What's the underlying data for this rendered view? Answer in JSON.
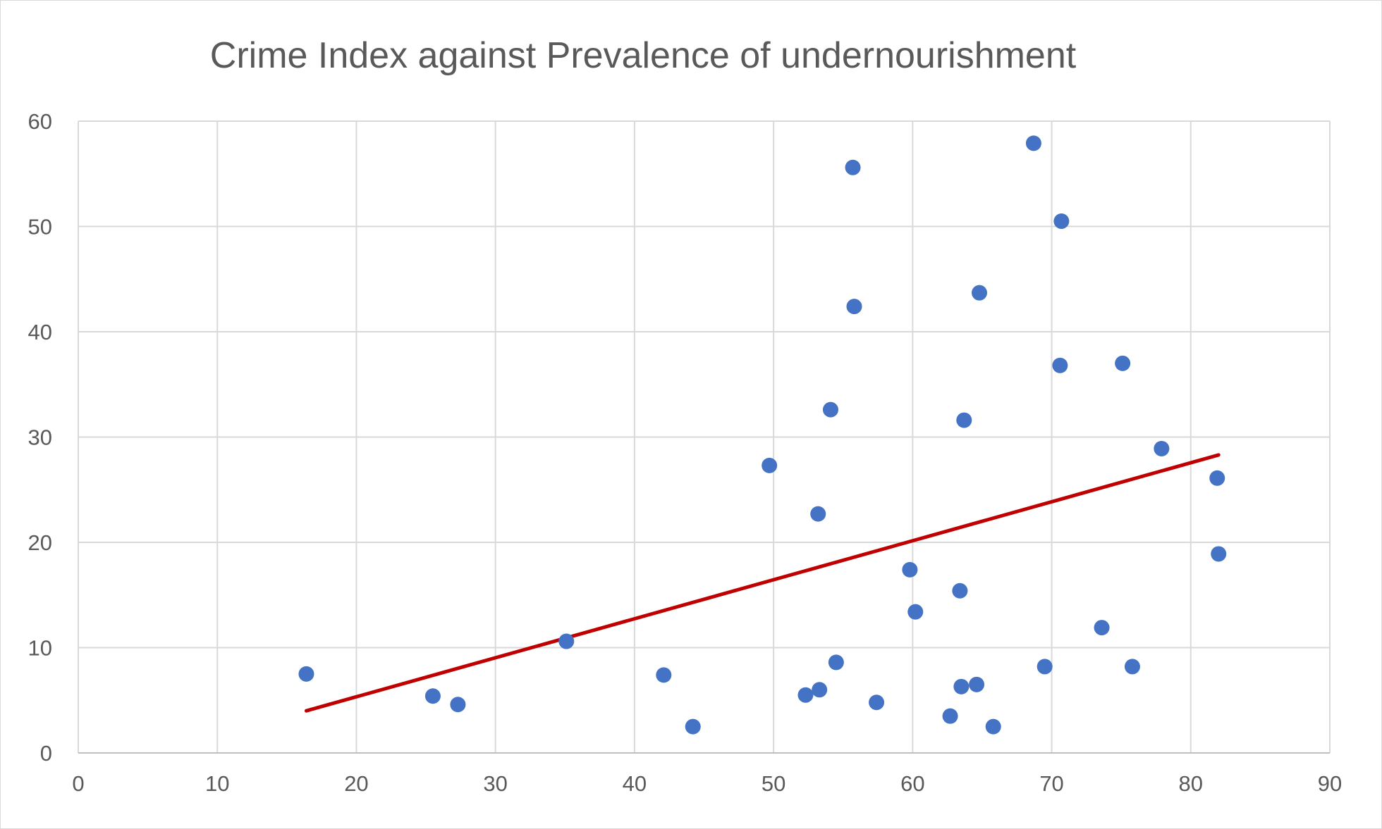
{
  "chart_data": {
    "type": "scatter",
    "title": "Crime Index against Prevalence of undernourishment",
    "xlabel": "",
    "ylabel": "",
    "xlim": [
      0,
      90
    ],
    "ylim": [
      0,
      60
    ],
    "x_ticks": [
      "0",
      "10",
      "20",
      "30",
      "40",
      "50",
      "60",
      "70",
      "80",
      "90"
    ],
    "y_ticks": [
      "0",
      "10",
      "20",
      "30",
      "40",
      "50",
      "60"
    ],
    "grid": true,
    "legend": "none",
    "marker_color": "#4472C4",
    "trendline_color": "#C00000",
    "points": [
      {
        "x": 16.4,
        "y": 7.5
      },
      {
        "x": 25.5,
        "y": 5.4
      },
      {
        "x": 27.3,
        "y": 4.6
      },
      {
        "x": 35.1,
        "y": 10.6
      },
      {
        "x": 42.1,
        "y": 7.4
      },
      {
        "x": 44.2,
        "y": 2.5
      },
      {
        "x": 49.7,
        "y": 27.3
      },
      {
        "x": 52.3,
        "y": 5.5
      },
      {
        "x": 53.2,
        "y": 22.7
      },
      {
        "x": 53.3,
        "y": 6.0
      },
      {
        "x": 54.1,
        "y": 32.6
      },
      {
        "x": 54.5,
        "y": 8.6
      },
      {
        "x": 55.7,
        "y": 55.6
      },
      {
        "x": 55.8,
        "y": 42.4
      },
      {
        "x": 57.4,
        "y": 4.8
      },
      {
        "x": 59.8,
        "y": 17.4
      },
      {
        "x": 60.2,
        "y": 13.4
      },
      {
        "x": 62.7,
        "y": 3.5
      },
      {
        "x": 63.4,
        "y": 15.4
      },
      {
        "x": 63.5,
        "y": 6.3
      },
      {
        "x": 63.7,
        "y": 31.6
      },
      {
        "x": 64.6,
        "y": 6.5
      },
      {
        "x": 64.8,
        "y": 43.7
      },
      {
        "x": 65.8,
        "y": 2.5
      },
      {
        "x": 68.7,
        "y": 57.9
      },
      {
        "x": 69.5,
        "y": 8.2
      },
      {
        "x": 70.6,
        "y": 36.8
      },
      {
        "x": 70.7,
        "y": 50.5
      },
      {
        "x": 73.6,
        "y": 11.9
      },
      {
        "x": 75.1,
        "y": 37.0
      },
      {
        "x": 75.8,
        "y": 8.2
      },
      {
        "x": 77.9,
        "y": 28.9
      },
      {
        "x": 81.9,
        "y": 26.1
      },
      {
        "x": 82.0,
        "y": 18.9
      }
    ],
    "trendline": {
      "type": "linear",
      "x": [
        16.4,
        82.0
      ],
      "y": [
        4.0,
        28.3
      ]
    }
  }
}
